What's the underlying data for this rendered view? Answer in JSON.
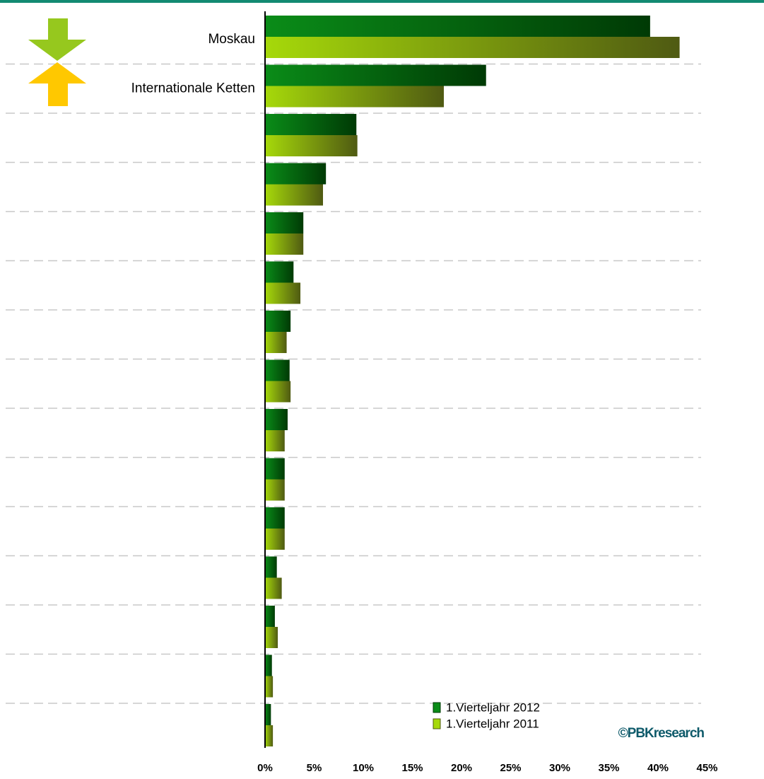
{
  "colors": {
    "top_rule": "#138a72",
    "series_2012_start": "#0a8c18",
    "series_2012_end": "#003a05",
    "series_2011_start": "#a6d90a",
    "series_2011_end": "#4f5a12",
    "down_arrow": "#96c81e",
    "up_arrow": "#ffc800",
    "axis": "#000000",
    "gridline": "#c8c8c8",
    "watermark": "#0e5a6a"
  },
  "icons": {
    "down": "down-arrow-icon",
    "up": "up-arrow-icon"
  },
  "watermark": "©PBKresearch",
  "chart_data": {
    "type": "bar",
    "orientation": "horizontal",
    "categories": [
      "Moskau",
      "Internationale Ketten",
      "",
      "",
      "",
      "",
      "",
      "",
      "",
      "",
      "",
      "",
      "",
      "",
      ""
    ],
    "series": [
      {
        "name": "1.Vierteljahr 2012",
        "values": [
          39.2,
          22.5,
          9.3,
          6.2,
          3.9,
          2.9,
          2.6,
          2.5,
          2.3,
          2.0,
          2.0,
          1.2,
          1.0,
          0.7,
          0.6
        ]
      },
      {
        "name": "1.Vierteljahr 2011",
        "values": [
          42.2,
          18.2,
          9.4,
          5.9,
          3.9,
          3.6,
          2.2,
          2.6,
          2.0,
          2.0,
          2.0,
          1.7,
          1.3,
          0.8,
          0.8
        ]
      }
    ],
    "xticks": [
      "0%",
      "5%",
      "10%",
      "15%",
      "20%",
      "25%",
      "30%",
      "35%",
      "40%",
      "45%"
    ],
    "xlim": [
      0,
      45
    ],
    "xlabel": "",
    "ylabel": "",
    "title": "",
    "grid": "horizontal dashed separators",
    "legend": "bottom-right"
  }
}
